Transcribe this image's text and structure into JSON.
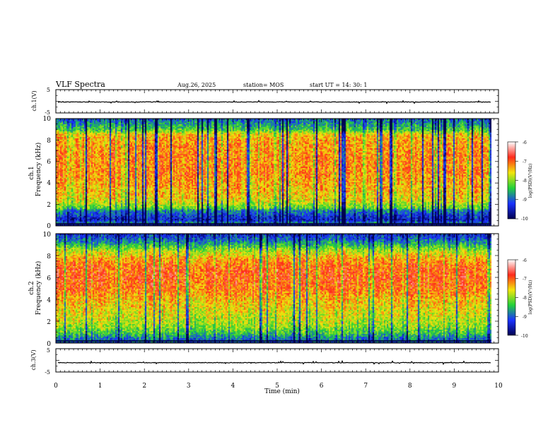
{
  "header": {
    "title": "VLF Spectra",
    "date": "Aug.26, 2025",
    "station": "station= MOS",
    "start": "start  UT  =   14: 30: 1"
  },
  "colorbar": {
    "label": "log(PSD)(V²/Hz)",
    "ticks": [
      "-6",
      "-7",
      "-8",
      "-9",
      "-10"
    ],
    "colors": [
      "#ffffff",
      "#ff2a1a",
      "#f3e60b",
      "#22d23a",
      "#1a32ff",
      "#000050"
    ]
  },
  "chart_data": [
    {
      "id": "ch1-waveform",
      "type": "line",
      "ylabel": "ch.1(V)",
      "ylim": [
        -5,
        5
      ],
      "yticks": [
        "5",
        "-5"
      ],
      "xlim": [
        0,
        10
      ],
      "level": -0.3,
      "data_end_min": 9.83
    },
    {
      "id": "ch1-spectrogram",
      "type": "heatmap",
      "ylabel_channel": "ch.1",
      "ylabel": "Frequency (kHz)",
      "ylim": [
        0,
        10
      ],
      "yticks": [
        "0",
        "2",
        "4",
        "6",
        "8",
        "10"
      ],
      "xlim": [
        0,
        10
      ],
      "data_end_min": 9.83,
      "clim": [
        -10,
        -6
      ],
      "profile_khz": [
        0,
        0.3,
        0.6,
        1.5,
        1.7,
        2.5,
        3.5,
        5,
        6.5,
        8,
        8.6,
        9,
        9.5,
        10
      ],
      "profile_log_psd": [
        -8.5,
        -8.6,
        -9.5,
        -8.8,
        -8.2,
        -7.6,
        -7.4,
        -7.2,
        -7.2,
        -7.3,
        -7.5,
        -8.3,
        -8.6,
        -9.0
      ]
    },
    {
      "id": "ch2-spectrogram",
      "type": "heatmap",
      "ylabel_channel": "ch.2",
      "ylabel": "Frequency (kHz)",
      "ylim": [
        0,
        10
      ],
      "yticks": [
        "0",
        "2",
        "4",
        "6",
        "8",
        "10"
      ],
      "xlim": [
        0,
        10
      ],
      "data_end_min": 9.83,
      "clim": [
        -10,
        -6
      ],
      "profile_khz": [
        0,
        0.5,
        1,
        1.5,
        2,
        3,
        4,
        5,
        6,
        7,
        7.8,
        8.5,
        9,
        9.5,
        10
      ],
      "profile_log_psd": [
        -9.0,
        -8.8,
        -8.3,
        -8.0,
        -7.8,
        -7.6,
        -7.4,
        -7.05,
        -6.95,
        -7.0,
        -7.3,
        -7.8,
        -8.4,
        -8.9,
        -9.3
      ]
    },
    {
      "id": "ch3-waveform",
      "type": "line",
      "ylabel": "ch.3(V)",
      "ylim": [
        -5,
        5
      ],
      "yticks": [
        "5",
        "-5"
      ],
      "xlim": [
        0,
        10
      ],
      "level": -1.0,
      "data_end_min": 9.83,
      "xticks": [
        "0",
        "1",
        "2",
        "3",
        "4",
        "5",
        "6",
        "7",
        "8",
        "9",
        "10"
      ],
      "xlabel": "Time  (min)"
    }
  ]
}
